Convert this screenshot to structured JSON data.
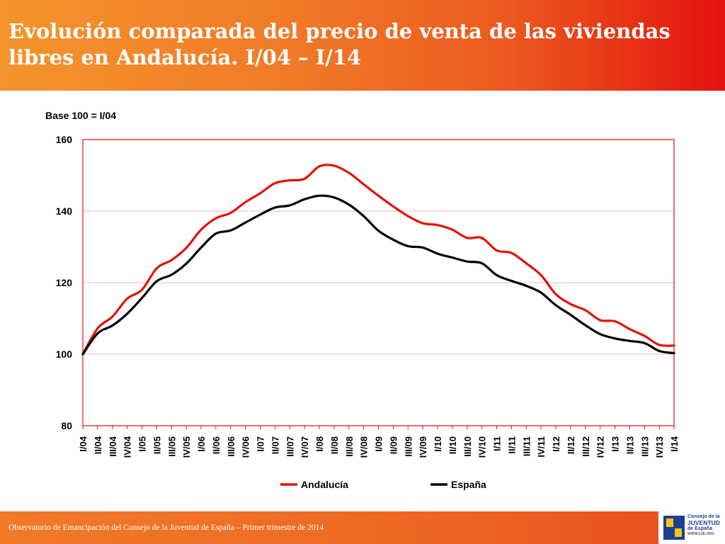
{
  "header": {
    "title": "Evolución comparada del precio de venta de las viviendas libres en Andalucía. I/04 – I/14"
  },
  "chart_data": {
    "type": "line",
    "unit_label": "Base 100 = I/04",
    "ylim": [
      80,
      160
    ],
    "yticks": [
      80,
      100,
      120,
      140,
      160
    ],
    "grid": true,
    "legend_position": "bottom",
    "categories": [
      "I/04",
      "II/04",
      "III/04",
      "IV/04",
      "I/05",
      "II/05",
      "III/05",
      "IV/05",
      "I/06",
      "II/06",
      "III/06",
      "IV/06",
      "I/07",
      "II/07",
      "III/07",
      "IV/07",
      "I/08",
      "II/08",
      "III/08",
      "IV/08",
      "I/09",
      "II/09",
      "III/09",
      "IV/09",
      "I/10",
      "II/10",
      "III/10",
      "IV/10",
      "I/11",
      "II/11",
      "III/11",
      "IV/11",
      "I/12",
      "II/12",
      "III/12",
      "IV/12",
      "I/13",
      "II/13",
      "III/13",
      "IV/13",
      "I/14"
    ],
    "series": [
      {
        "name": "Andalucía",
        "color": "#e3120e",
        "values": [
          100.0,
          107.2,
          110.5,
          115.5,
          118.0,
          124.0,
          126.3,
          129.7,
          134.8,
          138.0,
          139.5,
          142.5,
          145.0,
          147.8,
          148.6,
          149.0,
          152.5,
          152.7,
          150.7,
          147.5,
          144.3,
          141.3,
          138.6,
          136.6,
          136.1,
          134.8,
          132.5,
          132.5,
          129.0,
          128.3,
          125.4,
          122.1,
          116.8,
          114.0,
          112.3,
          109.5,
          109.2,
          107.0,
          105.1,
          102.6,
          102.4
        ]
      },
      {
        "name": "España",
        "color": "#000000",
        "values": [
          100.0,
          105.8,
          108.0,
          111.3,
          115.7,
          120.4,
          122.2,
          125.3,
          129.8,
          133.7,
          134.6,
          136.8,
          139.0,
          141.0,
          141.6,
          143.3,
          144.3,
          143.8,
          141.8,
          138.6,
          134.5,
          132.0,
          130.2,
          129.8,
          128.1,
          127.0,
          125.9,
          125.4,
          122.1,
          120.5,
          119.1,
          117.2,
          113.7,
          111.0,
          108.1,
          105.6,
          104.4,
          103.7,
          103.1,
          100.9,
          100.3
        ]
      }
    ]
  },
  "footer": {
    "note": "Observatorio de Emancipación del Consejo de la Juventud de España – Primer trimestre de 2014",
    "logo": {
      "line1": "Consejo de la",
      "line2": "JUVENTUD",
      "line3": "de España",
      "url": "WWW.CJE.ORG"
    }
  }
}
